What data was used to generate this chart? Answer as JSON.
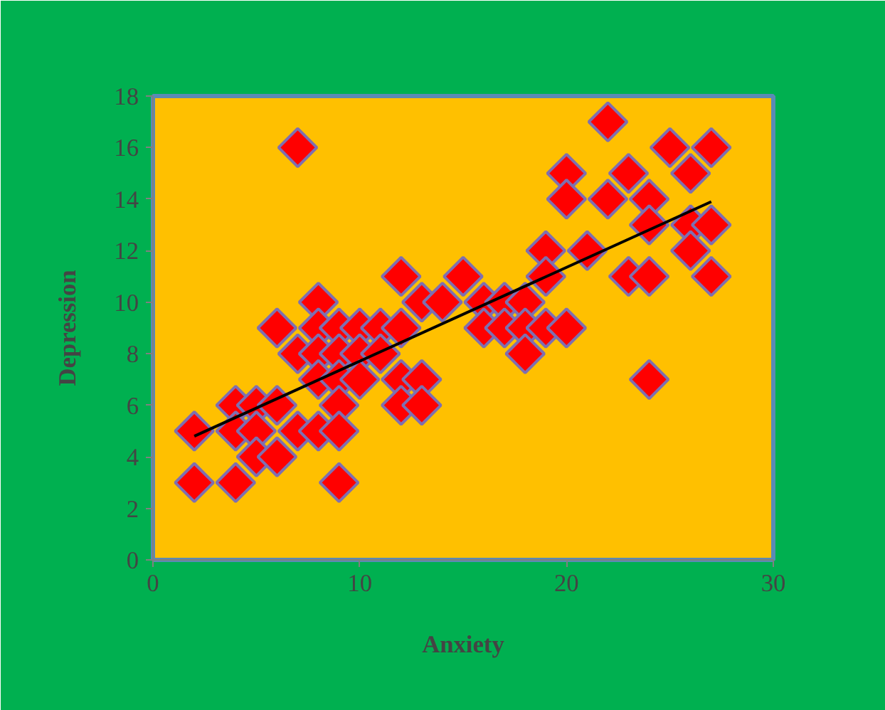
{
  "chart_data": {
    "type": "scatter",
    "xlabel": "Anxiety",
    "ylabel": "Depression",
    "xlim": [
      0,
      30
    ],
    "ylim": [
      0,
      18
    ],
    "xticks": [
      0,
      10,
      20,
      30
    ],
    "yticks": [
      0,
      2,
      4,
      6,
      8,
      10,
      12,
      14,
      16,
      18
    ],
    "series": [
      {
        "marker": "diamond",
        "color": "#ff0000",
        "x": [
          2,
          2,
          4,
          4,
          4,
          5,
          5,
          5,
          6,
          6,
          6,
          7,
          7,
          7,
          8,
          8,
          8,
          8,
          8,
          9,
          9,
          9,
          9,
          9,
          9,
          10,
          10,
          10,
          11,
          11,
          12,
          12,
          12,
          12,
          13,
          13,
          13,
          14,
          15,
          16,
          16,
          17,
          17,
          18,
          18,
          18,
          19,
          19,
          19,
          20,
          20,
          20,
          21,
          22,
          22,
          23,
          23,
          24,
          24,
          24,
          24,
          25,
          26,
          26,
          26,
          27,
          27,
          27
        ],
        "values": [
          5,
          3,
          6,
          5,
          3,
          6,
          5,
          4,
          9,
          6,
          4,
          16,
          8,
          5,
          10,
          9,
          8,
          7,
          5,
          9,
          8,
          7,
          6,
          5,
          3,
          9,
          8,
          7,
          9,
          8,
          11,
          9,
          7,
          6,
          10,
          7,
          6,
          10,
          11,
          10,
          9,
          10,
          9,
          10,
          9,
          8,
          12,
          11,
          9,
          15,
          14,
          9,
          12,
          17,
          14,
          15,
          11,
          14,
          13,
          11,
          7,
          16,
          15,
          13,
          12,
          16,
          13,
          11
        ]
      },
      {
        "type": "line",
        "color": "#000000",
        "x": [
          2,
          27
        ],
        "values": [
          4.8,
          13.9
        ]
      }
    ]
  }
}
